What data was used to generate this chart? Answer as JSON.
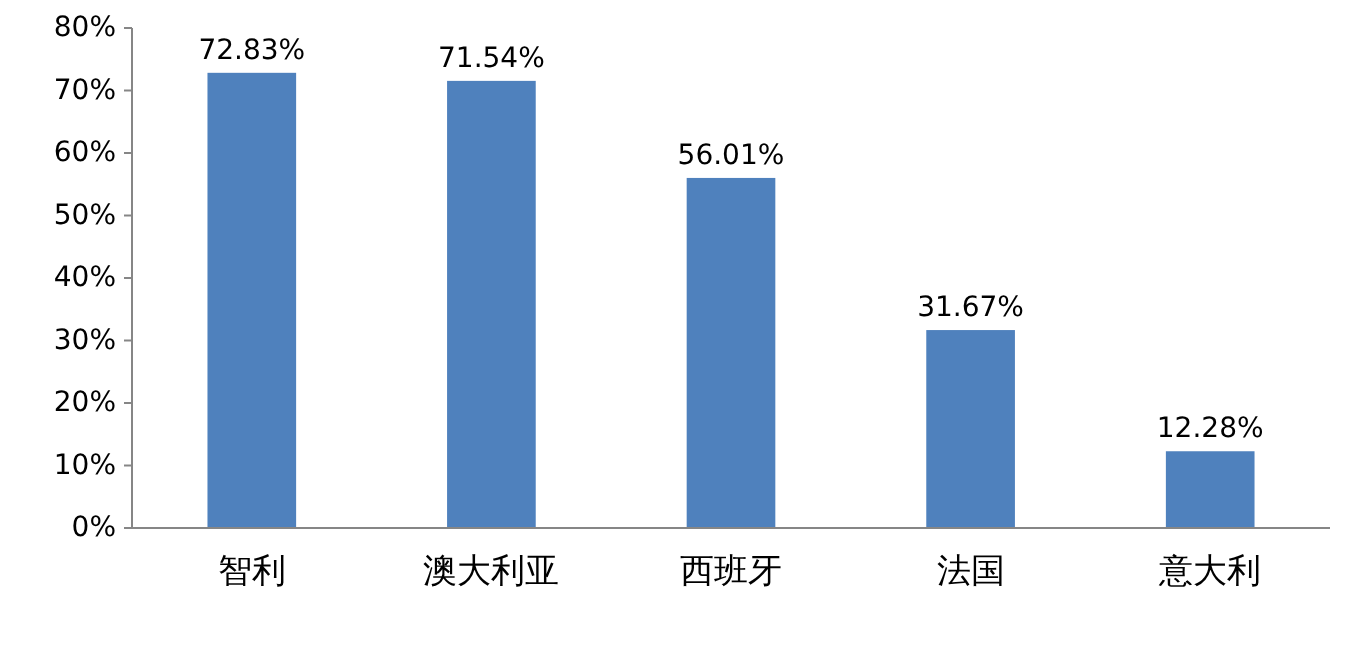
{
  "chart_data": {
    "type": "bar",
    "categories": [
      "智利",
      "澳大利亚",
      "西班牙",
      "法国",
      "意大利"
    ],
    "values": [
      72.83,
      71.54,
      56.01,
      31.67,
      12.28
    ],
    "value_labels": [
      "72.83%",
      "71.54%",
      "56.01%",
      "31.67%",
      "12.28%"
    ],
    "color": "#4f81bd",
    "ylim": [
      0,
      80
    ],
    "data_labels": true,
    "yticks": [
      {
        "value": 0,
        "label": "0%"
      },
      {
        "value": 10,
        "label": "10%"
      },
      {
        "value": 20,
        "label": "20%"
      },
      {
        "value": 30,
        "label": "30%"
      },
      {
        "value": 40,
        "label": "40%"
      },
      {
        "value": 50,
        "label": "50%"
      },
      {
        "value": 60,
        "label": "60%"
      },
      {
        "value": 70,
        "label": "70%"
      },
      {
        "value": 80,
        "label": "80%"
      }
    ],
    "tick_labels": true
  }
}
